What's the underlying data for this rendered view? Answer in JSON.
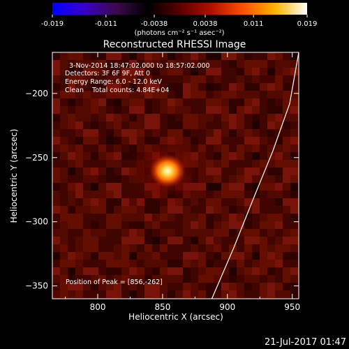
{
  "chart_data": {
    "type": "heatmap",
    "title": "Reconstructed RHESSI Image",
    "colorbar": {
      "ticks": [
        "-0.019",
        "-0.011",
        "-0.0038",
        "0.0038",
        "0.011",
        "0.019"
      ],
      "tick_values": [
        -0.019,
        -0.011,
        -0.0038,
        0.0038,
        0.011,
        0.019
      ],
      "range": [
        -0.019,
        0.019
      ],
      "unit_label": "(photons cm⁻² s⁻¹ asec⁻²)",
      "colormap": [
        "#0000ff",
        "#3a00c8",
        "#3c0a4a",
        "#000000",
        "#5a0000",
        "#b01000",
        "#ff5000",
        "#ffb400",
        "#ffffff"
      ]
    },
    "xlabel": "Heliocentric X (arcsec)",
    "ylabel": "Heliocentric Y (arcsec)",
    "xlim": [
      765,
      955
    ],
    "ylim": [
      -360,
      -168
    ],
    "x_ticks": [
      800,
      850,
      900,
      950
    ],
    "y_ticks": [
      -200,
      -250,
      -300,
      -350
    ],
    "annotations": {
      "time_range": "3-Nov-2014 18:47:02.000 to 18:57:02.000",
      "detectors": "Detectors: 3F 6F 9F, Att 0",
      "energy": "Energy Range: 6.0 - 12.0 keV",
      "clean": "Clean    Total counts: 4.84E+04",
      "peak": "Position of Peak = [856,-262]"
    },
    "peak": [
      856,
      -262
    ],
    "limb_curve": {
      "x": [
        888,
        905,
        920,
        935,
        948,
        955
      ],
      "y": [
        -360,
        -320,
        -282,
        -245,
        -208,
        -168
      ]
    },
    "timestamp": "21-Jul-2017 01:47"
  }
}
